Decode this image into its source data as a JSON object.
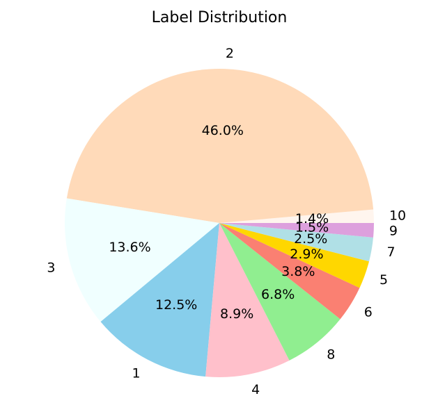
{
  "chart_data": {
    "type": "pie",
    "title": "Label Distribution",
    "slices": [
      {
        "label": "10",
        "percent": 1.4,
        "percent_label": "1.4%",
        "color": "#fff5ee"
      },
      {
        "label": "2",
        "percent": 46.0,
        "percent_label": "46.0%",
        "color": "#ffdab9"
      },
      {
        "label": "3",
        "percent": 13.6,
        "percent_label": "13.6%",
        "color": "#f0ffff"
      },
      {
        "label": "1",
        "percent": 12.5,
        "percent_label": "12.5%",
        "color": "#87ceeb"
      },
      {
        "label": "4",
        "percent": 8.9,
        "percent_label": "8.9%",
        "color": "#ffc0cb"
      },
      {
        "label": "8",
        "percent": 6.8,
        "percent_label": "6.8%",
        "color": "#90ee90"
      },
      {
        "label": "6",
        "percent": 3.8,
        "percent_label": "3.8%",
        "color": "#fa8072"
      },
      {
        "label": "5",
        "percent": 2.9,
        "percent_label": "2.9%",
        "color": "#ffd700"
      },
      {
        "label": "7",
        "percent": 2.5,
        "percent_label": "2.5%",
        "color": "#b0e0e6"
      },
      {
        "label": "9",
        "percent": 1.5,
        "percent_label": "1.5%",
        "color": "#dda0dd"
      }
    ],
    "start_angle_deg": 0,
    "direction": "counterclockwise"
  }
}
